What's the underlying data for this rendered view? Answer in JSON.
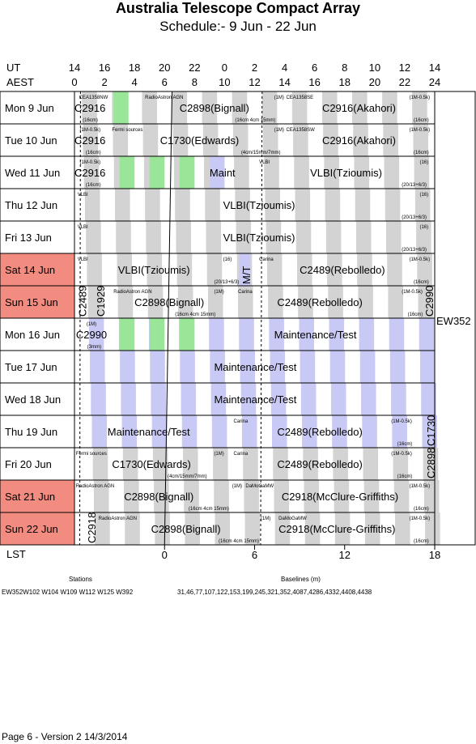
{
  "title": "Australia Telescope Compact Array",
  "subtitle": "Schedule:- 9  Jun - 22 Jun",
  "axis": {
    "ut_label": "UT",
    "aest_label": "AEST",
    "lst_label": "LST",
    "ut_ticks": [
      "14",
      "16",
      "18",
      "20",
      "22",
      "0",
      "2",
      "4",
      "6",
      "8",
      "10",
      "12",
      "14"
    ],
    "aest_ticks": [
      "0",
      "2",
      "4",
      "6",
      "8",
      "10",
      "12",
      "14",
      "16",
      "18",
      "20",
      "22",
      "24"
    ],
    "lst_ticks": [
      "0",
      "6",
      "12",
      "18"
    ]
  },
  "days": [
    {
      "label": "Mon   9  Jun",
      "weekend": false
    },
    {
      "label": "Tue   10  Jun",
      "weekend": false
    },
    {
      "label": "Wed   11  Jun",
      "weekend": false
    },
    {
      "label": "Thu   12  Jun",
      "weekend": false
    },
    {
      "label": "Fri   13  Jun",
      "weekend": false
    },
    {
      "label": "Sat   14  Jun",
      "weekend": true
    },
    {
      "label": "Sun   15  Jun",
      "weekend": true
    },
    {
      "label": "Mon   16  Jun",
      "weekend": false
    },
    {
      "label": "Tue   17  Jun",
      "weekend": false
    },
    {
      "label": "Wed   18  Jun",
      "weekend": false
    },
    {
      "label": "Thu   19  Jun",
      "weekend": false
    },
    {
      "label": "Fri   20  Jun",
      "weekend": false
    },
    {
      "label": "Sat   21  Jun",
      "weekend": true
    },
    {
      "label": "Sun   22  Jun",
      "weekend": true
    }
  ],
  "labels": [
    [
      "C2916",
      0,
      0.0,
      0.45
    ],
    [
      "CEA1358NW",
      0,
      0.3,
      0.13
    ],
    [
      "(16cm)",
      0,
      0.55,
      0.82
    ],
    [
      "RadioAstron AGN",
      0,
      4.7,
      0.13
    ],
    [
      "C2898(Bignall)",
      0,
      7.0,
      0.45
    ],
    [
      "(16cm 4cm 15mm)",
      0,
      10.7,
      0.82
    ],
    [
      "(1M)",
      0,
      13.3,
      0.13
    ],
    [
      "CEA1358SE",
      0,
      14.1,
      0.13
    ],
    [
      "C2916(Akahori)",
      0,
      16.5,
      0.45
    ],
    [
      "(1M-0.5k)",
      0,
      22.3,
      0.13
    ],
    [
      "(16cm)",
      0,
      22.6,
      0.82
    ],
    [
      "(1M-0.5k)",
      1,
      0.35,
      0.13
    ],
    [
      "Fermi sources",
      1,
      2.5,
      0.13
    ],
    [
      "C2916",
      1,
      0.0,
      0.45
    ],
    [
      "(16cm)",
      1,
      0.75,
      0.82
    ],
    [
      "C1730(Edwards)",
      1,
      5.7,
      0.45
    ],
    [
      "(4cm/15mm/7mm)",
      1,
      11.1,
      0.82
    ],
    [
      "(1M)",
      1,
      13.3,
      0.13
    ],
    [
      "CEA1358SW",
      1,
      14.1,
      0.13
    ],
    [
      "C2916(Akahori)",
      1,
      16.5,
      0.45
    ],
    [
      "(1M-0.5k)",
      1,
      22.3,
      0.13
    ],
    [
      "(16cm)",
      1,
      22.6,
      0.82
    ],
    [
      "(1M-0.5k)",
      2,
      0.35,
      0.13
    ],
    [
      "C2916",
      2,
      0.0,
      0.45
    ],
    [
      "(16cm)",
      2,
      0.75,
      0.82
    ],
    [
      "Maint",
      2,
      9.0,
      0.45
    ],
    [
      "VLBI",
      2,
      12.3,
      0.13
    ],
    [
      "VLBI(Tzioumis)",
      2,
      15.7,
      0.45
    ],
    [
      "(16)",
      2,
      23.0,
      0.13
    ],
    [
      "(20/13+6/3)",
      2,
      21.8,
      0.82
    ],
    [
      "VLBI",
      3,
      0.2,
      0.13
    ],
    [
      "VLBI(Tzioumis)",
      3,
      9.9,
      0.45
    ],
    [
      "(16)",
      3,
      23.0,
      0.13
    ],
    [
      "(20/13+6/3)",
      3,
      21.8,
      0.82
    ],
    [
      "VLBI",
      4,
      0.2,
      0.13
    ],
    [
      "VLBI(Tzioumis)",
      4,
      9.9,
      0.45
    ],
    [
      "(16)",
      4,
      23.0,
      0.13
    ],
    [
      "(20/13+6/3)",
      4,
      21.8,
      0.82
    ],
    [
      "VLBI",
      5,
      0.2,
      0.13
    ],
    [
      "VLBI(Tzioumis)",
      5,
      2.9,
      0.45
    ],
    [
      "(16)",
      5,
      9.9,
      0.13
    ],
    [
      "(20/13+6/3)",
      5,
      9.3,
      0.82
    ],
    [
      "Carina",
      5,
      12.3,
      0.13
    ],
    [
      "C2489(Rebolledo)",
      5,
      15.0,
      0.45
    ],
    [
      "(1M-0.5k)",
      5,
      22.3,
      0.13
    ],
    [
      "(16cm)",
      5,
      22.6,
      0.82
    ],
    [
      "RadioAstron AGN",
      6,
      2.6,
      0.13
    ],
    [
      "C2898(Bignall)",
      6,
      4.0,
      0.45
    ],
    [
      "(16cm 4cm 15mm)",
      6,
      6.7,
      0.82
    ],
    [
      "(1M)",
      6,
      9.3,
      0.13
    ],
    [
      "Carina",
      6,
      10.9,
      0.13
    ],
    [
      "C2489(Rebolledo)",
      6,
      13.5,
      0.45
    ],
    [
      "(1M-0.5k)",
      6,
      21.8,
      0.13
    ],
    [
      "(16cm)",
      6,
      22.2,
      0.82
    ],
    [
      "(1M)",
      7,
      0.8,
      0.13
    ],
    [
      "C2990",
      7,
      0.1,
      0.45
    ],
    [
      "(3mm)",
      7,
      0.85,
      0.82
    ],
    [
      "Maintenance/Test",
      7,
      13.3,
      0.45
    ],
    [
      "Maintenance/Test",
      8,
      9.3,
      0.45
    ],
    [
      "Maintenance/Test",
      9,
      9.3,
      0.45
    ],
    [
      "Maintenance/Test",
      10,
      2.2,
      0.45
    ],
    [
      "Carina",
      10,
      10.6,
      0.13
    ],
    [
      "C2489(Rebolledo)",
      10,
      13.5,
      0.45
    ],
    [
      "(1M-0.5k)",
      10,
      21.1,
      0.13
    ],
    [
      "(16cm)",
      10,
      21.5,
      0.82
    ],
    [
      "Fermi sources",
      11,
      0.1,
      0.13
    ],
    [
      "C1730(Edwards)",
      11,
      2.5,
      0.45
    ],
    [
      "(4cm/15mm/7mm)",
      11,
      6.2,
      0.82
    ],
    [
      "(1M)",
      11,
      9.3,
      0.13
    ],
    [
      "Carina",
      11,
      10.6,
      0.13
    ],
    [
      "C2489(Rebolledo)",
      11,
      13.5,
      0.45
    ],
    [
      "(1M-0.5k)",
      11,
      21.1,
      0.13
    ],
    [
      "(16cm)",
      11,
      21.5,
      0.82
    ],
    [
      "RadioAstron AGN",
      12,
      0.1,
      0.13
    ],
    [
      "C2898(Bignall)",
      12,
      3.3,
      0.45
    ],
    [
      "(16cm 4cm 15mm)",
      12,
      7.6,
      0.82
    ],
    [
      "(1M)",
      12,
      10.5,
      0.13
    ],
    [
      "DaMoGaMW",
      12,
      11.4,
      0.13
    ],
    [
      "C2918(McClure-Griffiths)",
      12,
      13.8,
      0.45
    ],
    [
      "(1M-0.5k)",
      12,
      22.3,
      0.13
    ],
    [
      "(16cm)",
      12,
      22.6,
      0.82
    ],
    [
      "RadioAstron AGN",
      13,
      1.6,
      0.13
    ],
    [
      "C2898(Bignall)",
      13,
      5.1,
      0.45
    ],
    [
      "(16cm 4cm 15mm)",
      13,
      9.6,
      0.82
    ],
    [
      "(1M)",
      13,
      12.4,
      0.13
    ],
    [
      "DaMoGaMW",
      13,
      13.6,
      0.13
    ],
    [
      "C2918(McClure-Griffiths)",
      13,
      13.6,
      0.45
    ],
    [
      "(1M-0.5k)",
      13,
      22.3,
      0.13
    ],
    [
      "(16cm)",
      13,
      22.6,
      0.82
    ]
  ],
  "vertical_labels": [
    [
      "C2489",
      6,
      0.2
    ],
    [
      "C1929",
      6,
      1.4
    ],
    [
      "C2990",
      6,
      23.3
    ],
    [
      "M/T",
      5,
      11.1
    ],
    [
      "C1730",
      10,
      23.4
    ],
    [
      "C2898",
      11,
      23.4
    ],
    [
      "C2918",
      13,
      0.8
    ]
  ],
  "side_label": "EW352",
  "footer": {
    "stations_title": "Stations",
    "stations": "EW352W102 W104 W109 W112 W125 W392",
    "baselines_title": "Baselines (m)",
    "baselines": "31,46,77,107,122,153,199,245,321,352,4087,4286,4332,4408,4438",
    "page": "Page 6 - Version 2  14/3/2014"
  },
  "colors": {
    "weekend": "#f28b80",
    "gray_band": "#d3d3d3",
    "green_band": "#99e699",
    "blue_band": "#c9c9f5"
  }
}
